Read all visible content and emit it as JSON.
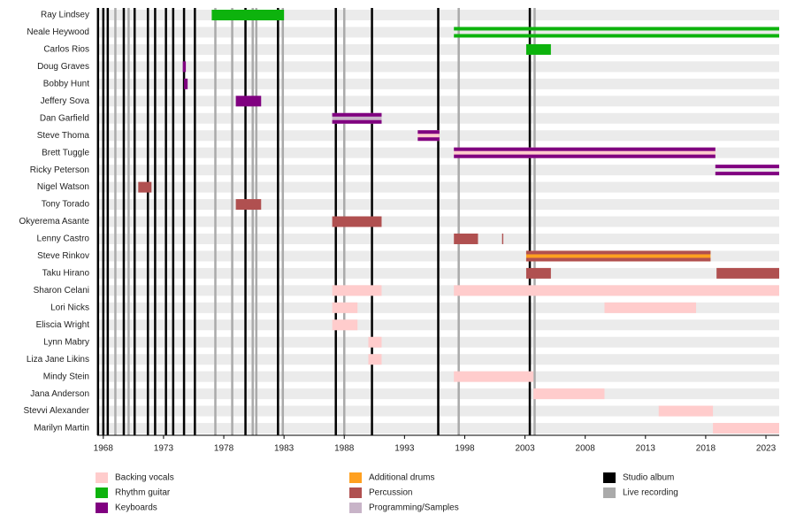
{
  "chart_data": {
    "type": "timeline",
    "categories": [
      "Ray Lindsey",
      "Neale Heywood",
      "Carlos Rios",
      "Doug Graves",
      "Bobby Hunt",
      "Jeffery Sova",
      "Dan Garfield",
      "Steve Thoma",
      "Brett Tuggle",
      "Ricky Peterson",
      "Nigel Watson",
      "Tony Torado",
      "Okyerema Asante",
      "Lenny Castro",
      "Steve Rinkov",
      "Taku Hirano",
      "Sharon Celani",
      "Lori Nicks",
      "Eliscia Wright",
      "Lynn Mabry",
      "Liza Jane Likins",
      "Mindy Stein",
      "Jana Anderson",
      "Stevvi Alexander",
      "Marilyn Martin"
    ],
    "series": [
      {
        "name": "Backing vocals",
        "color": "#ffcccc",
        "values": [
          [],
          [],
          [],
          [],
          [],
          [],
          [],
          [
            {
              "start": 1994.1,
              "end": 1995.9
            }
          ],
          [
            {
              "start": 1997.1,
              "end": 2018.8
            }
          ],
          [],
          [],
          [],
          [],
          [],
          [],
          [],
          [
            {
              "start": 1987,
              "end": 1991.1
            },
            {
              "start": 1997.1,
              "end": 2024.1
            }
          ],
          [
            {
              "start": 1987,
              "end": 1989.1
            },
            {
              "start": 2009.6,
              "end": 2017.2
            }
          ],
          [
            {
              "start": 1987,
              "end": 1989.1
            }
          ],
          [
            {
              "start": 1990,
              "end": 1991.1
            }
          ],
          [
            {
              "start": 1990,
              "end": 1991.1
            }
          ],
          [
            {
              "start": 1997.1,
              "end": 2003.7
            }
          ],
          [
            {
              "start": 2003.7,
              "end": 2009.6
            }
          ],
          [
            {
              "start": 2014.1,
              "end": 2018.6
            }
          ],
          [
            {
              "start": 2018.6,
              "end": 2024.1
            }
          ]
        ]
      },
      {
        "name": "Rhythm guitar",
        "color": "#0db30d",
        "values": [
          [
            {
              "start": 1977,
              "end": 1983
            }
          ],
          [
            {
              "start": 1997.1,
              "end": 2024.1,
              "stripe": true
            }
          ],
          [
            {
              "start": 2003.1,
              "end": 2005.15
            }
          ],
          [],
          [],
          [],
          [],
          [],
          [],
          [],
          [],
          [],
          [],
          [],
          [],
          [],
          [],
          [],
          [],
          [],
          [],
          [],
          [],
          [],
          []
        ]
      },
      {
        "name": "Keyboards",
        "color": "#800080",
        "values": [
          [],
          [],
          [],
          [
            {
              "start": 1974.6,
              "end": 1974.85
            }
          ],
          [
            {
              "start": 1974.7,
              "end": 1975
            }
          ],
          [
            {
              "start": 1979,
              "end": 1981.1
            }
          ],
          [
            {
              "start": 1987,
              "end": 1991.1,
              "stripe": true
            }
          ],
          [
            {
              "start": 1994.1,
              "end": 1995.9,
              "stripe": true
            }
          ],
          [
            {
              "start": 1997.1,
              "end": 2018.8,
              "stripe": true
            }
          ],
          [
            {
              "start": 2018.8,
              "end": 2024.1,
              "stripe": true
            }
          ],
          [],
          [],
          [],
          [],
          [],
          [],
          [],
          [],
          [],
          [],
          [],
          [],
          [],
          [],
          []
        ]
      },
      {
        "name": "Additional drums",
        "color": "#ffa020",
        "values": [
          [],
          [],
          [],
          [],
          [],
          [],
          [],
          [],
          [],
          [],
          [],
          [],
          [],
          [],
          [
            {
              "start": 2003.1,
              "end": 2018.4
            }
          ],
          [],
          [],
          [],
          [],
          [],
          [],
          [],
          [],
          [],
          []
        ]
      },
      {
        "name": "Percussion",
        "color": "#b05050",
        "values": [
          [],
          [],
          [],
          [],
          [],
          [],
          [],
          [],
          [],
          [],
          [
            {
              "start": 1970.9,
              "end": 1972
            }
          ],
          [
            {
              "start": 1979,
              "end": 1981.1
            }
          ],
          [
            {
              "start": 1987,
              "end": 1991.1
            }
          ],
          [
            {
              "start": 1997.1,
              "end": 1999.1
            },
            {
              "start": 2001.1,
              "end": 2001.2
            }
          ],
          [
            {
              "start": 2003.1,
              "end": 2018.4,
              "stripe": true
            }
          ],
          [
            {
              "start": 2003.1,
              "end": 2005.15
            },
            {
              "start": 2018.9,
              "end": 2024.1
            }
          ],
          [],
          [],
          [],
          [],
          [],
          [],
          [],
          [],
          []
        ]
      },
      {
        "name": "Programming/Samples",
        "color": "#c8b4c8",
        "values": [
          [],
          [],
          [],
          [],
          [],
          [],
          [
            {
              "start": 1987,
              "end": 1991.1
            }
          ],
          [],
          [],
          [],
          [],
          [],
          [],
          [],
          [],
          [],
          [],
          [],
          [],
          [],
          [],
          [],
          [],
          [],
          []
        ]
      }
    ],
    "events": [
      {
        "name": "Studio album",
        "color": "#000000",
        "x": [
          1967.56,
          1968.0,
          1968.37,
          1969.7,
          1970.6,
          1971.7,
          1972.3,
          1973.2,
          1973.8,
          1974.7,
          1975.6,
          1979.8,
          1982.5,
          1987.3,
          1990.3,
          1995.8,
          2003.4
        ]
      },
      {
        "name": "Live recording",
        "color": "#aaaaaa",
        "x": [
          1969.0,
          1970.1,
          1977.3,
          1978.7,
          1980.4,
          1980.7,
          1982.9,
          1988.0,
          1997.5,
          2003.8
        ]
      }
    ],
    "xlim": [
      1967.5,
      2024.1
    ],
    "xticks": [
      1968,
      1973,
      1978,
      1983,
      1988,
      1993,
      1998,
      2003,
      2008,
      2013,
      2018,
      2023
    ]
  }
}
